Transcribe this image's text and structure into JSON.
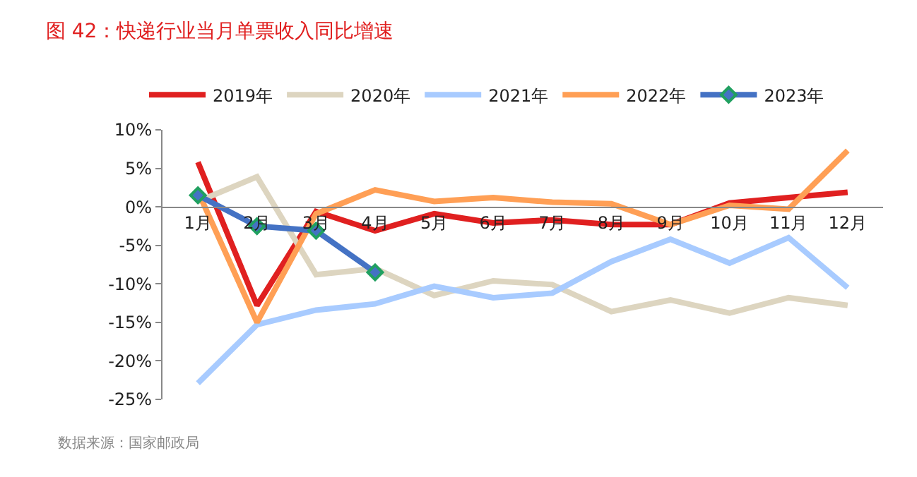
{
  "chart_data": {
    "type": "line",
    "title": "图 42：快递行业当月单票收入同比增速",
    "categories": [
      "1月",
      "2月",
      "3月",
      "4月",
      "5月",
      "6月",
      "7月",
      "8月",
      "9月",
      "10月",
      "11月",
      "12月"
    ],
    "series": [
      {
        "name": "2019年",
        "color": "#e02020",
        "values": [
          5.8,
          -12.8,
          -0.6,
          -3.1,
          -0.9,
          -2.1,
          -1.7,
          -2.3,
          -2.3,
          0.5,
          1.2,
          1.9
        ]
      },
      {
        "name": "2020年",
        "color": "#ddd5c0",
        "values": [
          0.7,
          3.9,
          -8.8,
          -8.0,
          -11.5,
          -9.6,
          -10.1,
          -13.6,
          -12.1,
          -13.8,
          -11.8,
          -12.8
        ]
      },
      {
        "name": "2021年",
        "color": "#a8cbff",
        "values": [
          -22.9,
          -15.3,
          -13.4,
          -12.6,
          -10.3,
          -11.8,
          -11.2,
          -7.1,
          -4.2,
          -7.3,
          -4.0,
          -10.5
        ]
      },
      {
        "name": "2022年",
        "color": "#ff9f55",
        "values": [
          2.0,
          -15.0,
          -0.9,
          2.2,
          0.7,
          1.2,
          0.6,
          0.4,
          -2.3,
          0.2,
          -0.3,
          7.3
        ]
      },
      {
        "name": "2023年",
        "color": "#4472c4",
        "marker": "diamond",
        "values": [
          1.5,
          -2.5,
          -3.1,
          -8.5,
          null,
          null,
          null,
          null,
          null,
          null,
          null,
          null
        ]
      }
    ],
    "ylim": [
      -25,
      10
    ],
    "yticks": [
      {
        "value": -25,
        "label": "-25%"
      },
      {
        "value": -20,
        "label": "-20%"
      },
      {
        "value": -15,
        "label": "-15%"
      },
      {
        "value": -10,
        "label": "-10%"
      },
      {
        "value": -5,
        "label": "-5%"
      },
      {
        "value": 0,
        "label": "0%"
      },
      {
        "value": 5,
        "label": "5%"
      },
      {
        "value": 10,
        "label": "10%"
      }
    ],
    "legend": "top",
    "marker": "none",
    "line_style": "solid",
    "annotations": [
      "数据来源：国家邮政局"
    ]
  }
}
